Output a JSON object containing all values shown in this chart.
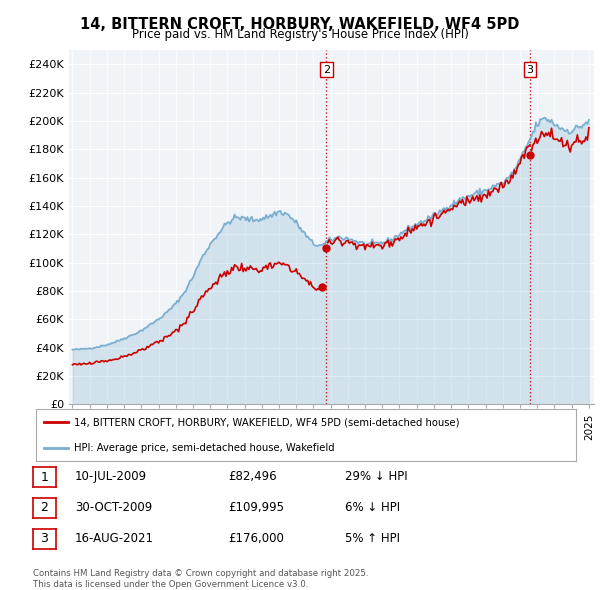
{
  "title": "14, BITTERN CROFT, HORBURY, WAKEFIELD, WF4 5PD",
  "subtitle": "Price paid vs. HM Land Registry's House Price Index (HPI)",
  "legend_line1": "14, BITTERN CROFT, HORBURY, WAKEFIELD, WF4 5PD (semi-detached house)",
  "legend_line2": "HPI: Average price, semi-detached house, Wakefield",
  "table_rows": [
    [
      "1",
      "10-JUL-2009",
      "£82,496",
      "29% ↓ HPI"
    ],
    [
      "2",
      "30-OCT-2009",
      "£109,995",
      "6% ↓ HPI"
    ],
    [
      "3",
      "16-AUG-2021",
      "£176,000",
      "5% ↑ HPI"
    ]
  ],
  "footer": "Contains HM Land Registry data © Crown copyright and database right 2025.\nThis data is licensed under the Open Government Licence v3.0.",
  "sale_color": "#cc0000",
  "hpi_color": "#7aadcf",
  "hpi_fill_color": "#ddeeff",
  "ylim": [
    0,
    250000
  ],
  "ytick_step": 20000,
  "background_color": "#ffffff",
  "plot_bg_color": "#f0f4f8",
  "grid_color": "#ffffff",
  "vline_color": "#cc0000",
  "annotation_box_color": "#cc0000"
}
